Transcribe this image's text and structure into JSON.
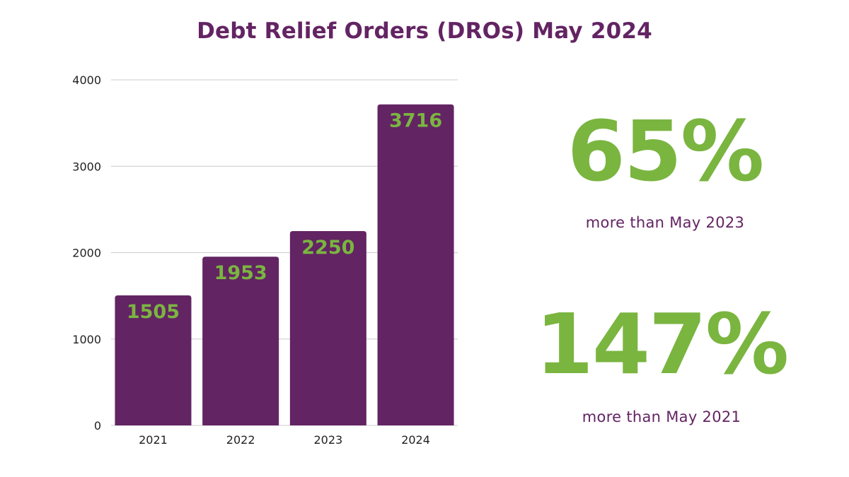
{
  "chart_data": {
    "type": "bar",
    "title": "Debt Relief Orders (DROs) May 2024",
    "categories": [
      "2021",
      "2022",
      "2023",
      "2024"
    ],
    "values": [
      1505,
      1953,
      2250,
      3716
    ],
    "data_labels": [
      "1505",
      "1953",
      "2250",
      "3716"
    ],
    "y_ticks": [
      "0",
      "1000",
      "2000",
      "3000",
      "4000"
    ],
    "xlabel": "",
    "ylabel": "",
    "ylim": [
      0,
      4000
    ],
    "grid": true,
    "bar_color": "#632463",
    "label_color": "#7ab540"
  },
  "stats": [
    {
      "value": "65%",
      "caption": "more than May 2023"
    },
    {
      "value": "147%",
      "caption": "more than May 2021"
    }
  ],
  "colors": {
    "accent_purple": "#632463",
    "accent_green": "#7ab540",
    "gridline": "#cccccc"
  }
}
